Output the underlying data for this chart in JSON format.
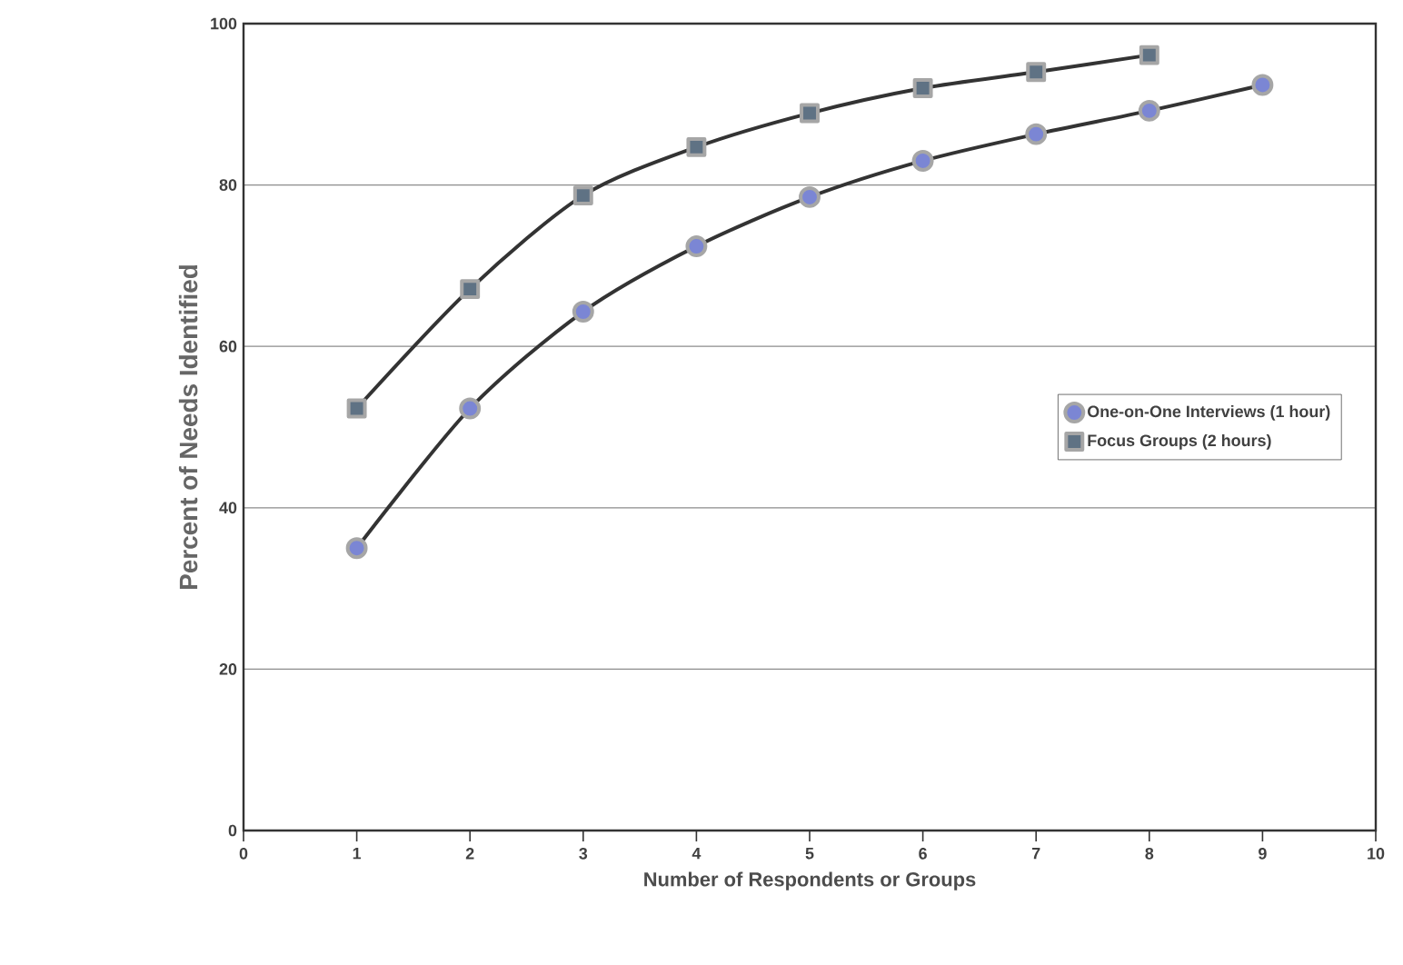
{
  "chart_data": {
    "type": "line",
    "xlabel": "Number of Respondents or Groups",
    "ylabel": "Percent of Needs Identified",
    "x": [
      1,
      2,
      3,
      4,
      5,
      6,
      7,
      8,
      9
    ],
    "series": [
      {
        "name": "One-on-One Interviews (1 hour)",
        "color": "#7b86d4",
        "marker": "circle",
        "values": [
          35,
          52.3,
          64.3,
          72.4,
          78.5,
          83,
          86.3,
          89.2,
          92.4
        ]
      },
      {
        "name": "Focus Groups (2 hours)",
        "color": "#5f7284",
        "marker": "square",
        "values": [
          52.3,
          67.1,
          78.7,
          84.7,
          88.9,
          92,
          94,
          96.1,
          null
        ]
      }
    ],
    "xlim": [
      0,
      10
    ],
    "xticks": [
      0,
      1,
      2,
      3,
      4,
      5,
      6,
      7,
      8,
      9,
      10
    ],
    "ylim": [
      0,
      100
    ],
    "yticks": [
      0,
      20,
      40,
      60,
      80,
      100
    ],
    "grid": "y",
    "legend": "right"
  }
}
